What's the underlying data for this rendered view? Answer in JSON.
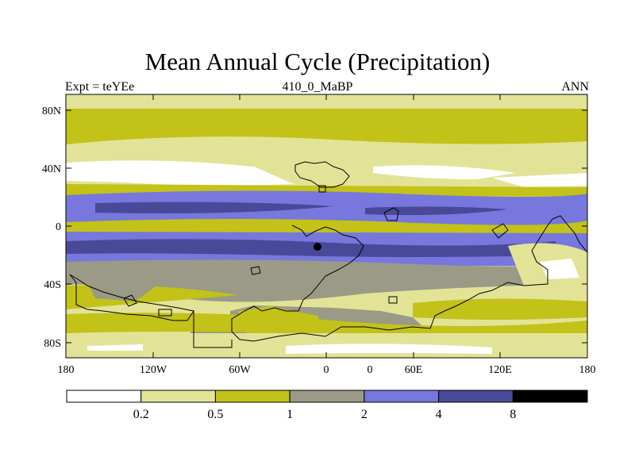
{
  "header": {
    "title": "Mean Annual Cycle (Precipitation)",
    "left": "Expt = teYEe",
    "center": "410_0_MaBP",
    "right": "ANN"
  },
  "map": {
    "lat_ticks": [
      "80N",
      "40N",
      "0",
      "40S",
      "80S"
    ],
    "lon_ticks": [
      "180",
      "120W",
      "60W",
      "0",
      "0",
      "60E",
      "120E",
      "180"
    ]
  },
  "legend": {
    "colors": [
      "#ffffff",
      "#e3e398",
      "#c2c219",
      "#9a9a86",
      "#7777dd",
      "#494999",
      "#000000"
    ],
    "labels": [
      "0.2",
      "0.5",
      "1",
      "2",
      "4",
      "8"
    ]
  }
}
